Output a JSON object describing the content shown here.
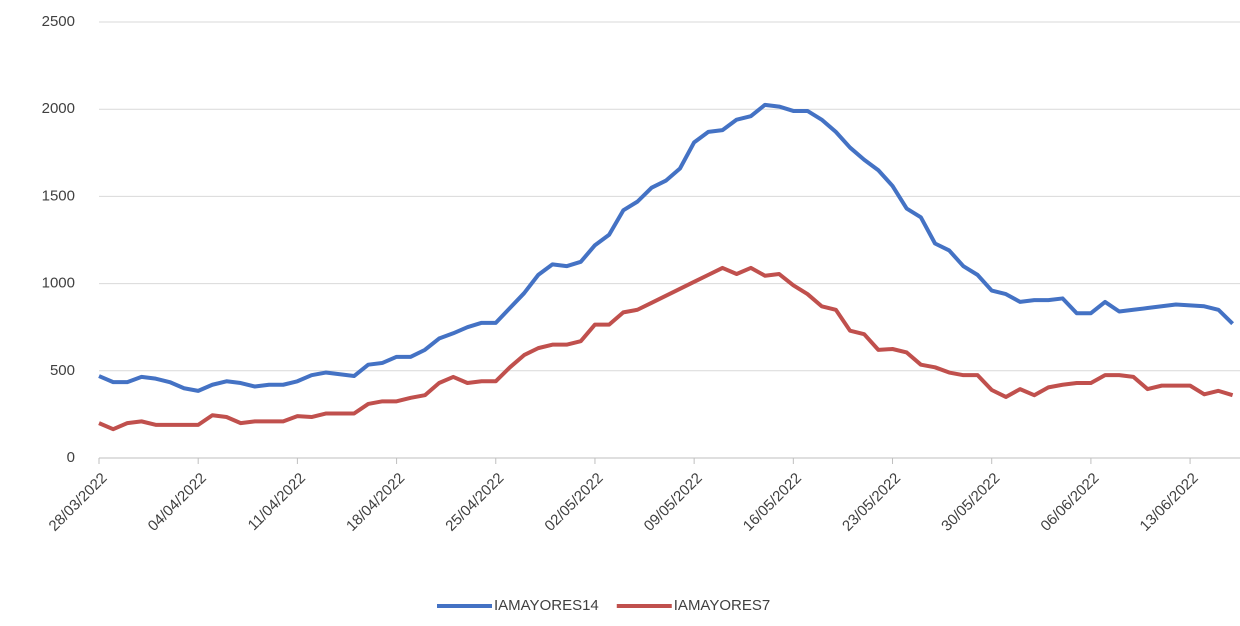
{
  "chart_data": {
    "type": "line",
    "categories": [
      "28/03/2022",
      null,
      null,
      null,
      null,
      null,
      null,
      "04/04/2022",
      null,
      null,
      null,
      null,
      null,
      null,
      "11/04/2022",
      null,
      null,
      null,
      null,
      null,
      null,
      "18/04/2022",
      null,
      null,
      null,
      null,
      null,
      null,
      "25/04/2022",
      null,
      null,
      null,
      null,
      null,
      null,
      "02/05/2022",
      null,
      null,
      null,
      null,
      null,
      null,
      "09/05/2022",
      null,
      null,
      null,
      null,
      null,
      null,
      "16/05/2022",
      null,
      null,
      null,
      null,
      null,
      null,
      "23/05/2022",
      null,
      null,
      null,
      null,
      null,
      null,
      "30/05/2022",
      null,
      null,
      null,
      null,
      null,
      null,
      "06/06/2022",
      null,
      null,
      null,
      null,
      null,
      null,
      "13/06/2022",
      null,
      null,
      null
    ],
    "series": [
      {
        "name": "IAMAYORES14",
        "color": "#4472c4",
        "values": [
          470,
          435,
          435,
          465,
          455,
          435,
          400,
          385,
          420,
          440,
          430,
          410,
          420,
          420,
          440,
          475,
          490,
          480,
          470,
          535,
          545,
          580,
          580,
          620,
          685,
          715,
          750,
          775,
          775,
          860,
          945,
          1050,
          1110,
          1100,
          1125,
          1220,
          1280,
          1420,
          1470,
          1550,
          1590,
          1660,
          1810,
          1870,
          1880,
          1940,
          1960,
          2025,
          2015,
          1990,
          1990,
          1940,
          1870,
          1780,
          1710,
          1650,
          1560,
          1430,
          1380,
          1230,
          1190,
          1100,
          1050,
          960,
          940,
          895,
          905,
          905,
          915,
          830,
          830,
          895,
          840,
          850,
          860,
          870,
          880,
          875,
          870,
          850,
          770
        ]
      },
      {
        "name": "IAMAYORES7",
        "color": "#c0504d",
        "values": [
          200,
          165,
          200,
          210,
          190,
          190,
          190,
          190,
          245,
          235,
          200,
          210,
          210,
          210,
          240,
          235,
          255,
          255,
          255,
          310,
          325,
          325,
          345,
          360,
          430,
          465,
          430,
          440,
          440,
          520,
          590,
          630,
          650,
          650,
          670,
          765,
          765,
          835,
          850,
          890,
          930,
          970,
          1010,
          1050,
          1090,
          1055,
          1090,
          1045,
          1055,
          990,
          940,
          870,
          850,
          730,
          710,
          620,
          625,
          605,
          535,
          520,
          490,
          475,
          475,
          390,
          350,
          395,
          360,
          405,
          420,
          430,
          430,
          475,
          475,
          465,
          395,
          415,
          415,
          415,
          365,
          385,
          360
        ]
      }
    ],
    "ylim": [
      0,
      2500
    ],
    "yticks": [
      0,
      500,
      1000,
      1500,
      2000,
      2500
    ],
    "grid": true,
    "legend": "bottom"
  }
}
